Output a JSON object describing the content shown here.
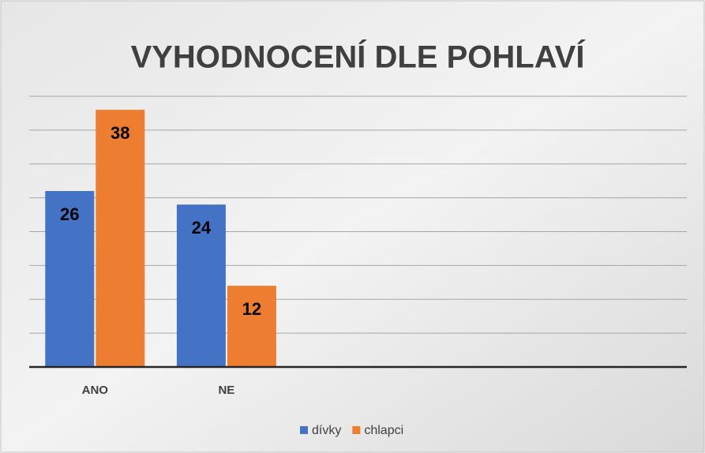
{
  "chart_data": {
    "type": "bar",
    "title": "VYHODNOCENÍ DLE POHLAVÍ",
    "categories": [
      "ANO",
      "NE",
      null,
      null,
      null
    ],
    "series": [
      {
        "name": "dívky",
        "color": "#4472c4",
        "values": [
          26,
          24,
          null,
          null,
          null
        ]
      },
      {
        "name": "chlapci",
        "color": "#ed7d31",
        "values": [
          38,
          12,
          null,
          null,
          null
        ]
      }
    ],
    "ylim": [
      0,
      40
    ],
    "yticks": [
      0,
      5,
      10,
      15,
      20,
      25,
      30,
      35,
      40
    ],
    "grid": true,
    "legend": "bottom"
  }
}
